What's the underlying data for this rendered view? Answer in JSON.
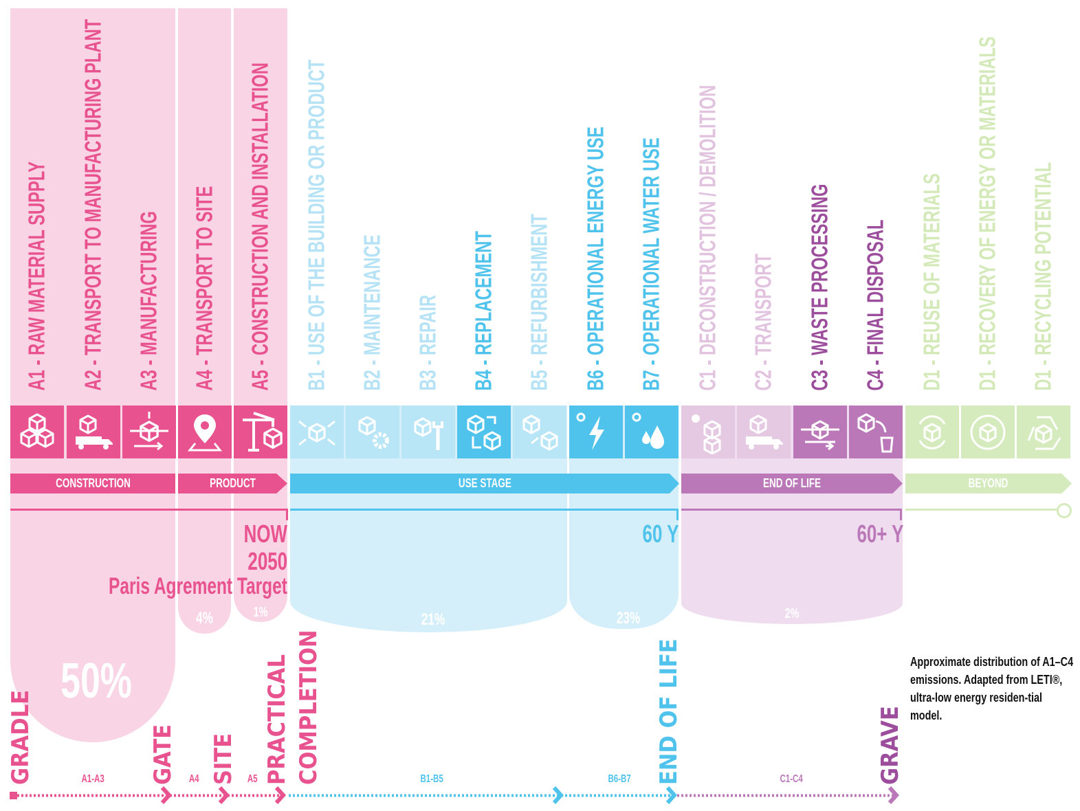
{
  "colors": {
    "pink": "#e8528f",
    "pink_light": "#f9d4e4",
    "blue_light": "#b9e6f7",
    "blue": "#4fc3eb",
    "blue_pale": "#d4effa",
    "lavender": "#e5c8e2",
    "purple": "#bb78b8",
    "purple_pale": "#efdcee",
    "green": "#d6ebbd"
  },
  "modules": [
    {
      "label": "A1 - RAW MATERIAL SUPPLY",
      "text_color": "#e8528f",
      "tile_color": "#e8528f",
      "icon": "cubes-stack-icon"
    },
    {
      "label": "A2 - TRANSPORT TO MANUFACTURING PLANT",
      "text_color": "#e8528f",
      "tile_color": "#e8528f",
      "icon": "truck-cube-icon"
    },
    {
      "label": "A3 - MANUFACTURING",
      "text_color": "#e8528f",
      "tile_color": "#e8528f",
      "icon": "manufacturing-icon"
    },
    {
      "label": "A4 - TRANSPORT TO SITE",
      "text_color": "#e8528f",
      "tile_color": "#e8528f",
      "icon": "location-pin-icon"
    },
    {
      "label": "A5 - CONSTRUCTION AND INSTALLATION",
      "text_color": "#e8528f",
      "tile_color": "#e8528f",
      "icon": "crane-icon"
    },
    {
      "label": "B1 - USE OF THE BUILDING OR PRODUCT",
      "text_color": "#b5e3f5",
      "tile_color": "#b9e6f7",
      "icon": "cube-rays-icon"
    },
    {
      "label": "B2 - MAINTENANCE",
      "text_color": "#b5e3f5",
      "tile_color": "#b9e6f7",
      "icon": "cube-gear-icon"
    },
    {
      "label": "B3 - REPAIR",
      "text_color": "#b5e3f5",
      "tile_color": "#b9e6f7",
      "icon": "cube-wrench-icon"
    },
    {
      "label": "B4 - REPLACEMENT",
      "text_color": "#4fc3eb",
      "tile_color": "#4fc3eb",
      "icon": "cube-swap-icon"
    },
    {
      "label": "B5 - REFURBISHMENT",
      "text_color": "#b5e3f5",
      "tile_color": "#b9e6f7",
      "icon": "cube-refurbish-icon"
    },
    {
      "label": "B6 - OPERATIONAL ENERGY USE",
      "text_color": "#4fc3eb",
      "tile_color": "#4fc3eb",
      "icon": "lightning-icon"
    },
    {
      "label": "B7 - OPERATIONAL WATER USE",
      "text_color": "#4fc3eb",
      "tile_color": "#4fc3eb",
      "icon": "water-drops-icon"
    },
    {
      "label": "C1 - DECONSTRUCTION / DEMOLITION",
      "text_color": "#e2c3df",
      "tile_color": "#e5c8e2",
      "icon": "wrecking-ball-icon"
    },
    {
      "label": "C2 - TRANSPORT",
      "text_color": "#e2c3df",
      "tile_color": "#e5c8e2",
      "icon": "truck-cube-icon"
    },
    {
      "label": "C3 - WASTE PROCESSING",
      "text_color": "#9c4e9c",
      "tile_color": "#bb78b8",
      "icon": "processing-icon"
    },
    {
      "label": "C4 - FINAL DISPOSAL",
      "text_color": "#9c4e9c",
      "tile_color": "#bb78b8",
      "icon": "trash-cube-icon"
    },
    {
      "label": "D1 - REUSE OF MATERIALS",
      "text_color": "#d3e9b7",
      "tile_color": "#d6ebbd",
      "icon": "reuse-icon"
    },
    {
      "label": "D1 - RECOVERY OF ENERGY OR MATERIALS",
      "text_color": "#d3e9b7",
      "tile_color": "#d6ebbd",
      "icon": "recovery-icon"
    },
    {
      "label": "D1 - RECYCLING POTENTIAL",
      "text_color": "#d3e9b7",
      "tile_color": "#d6ebbd",
      "icon": "recycle-icon"
    }
  ],
  "stages": {
    "construction": "CONSTRUCTION",
    "product": "PRODUCT",
    "use": "USE STAGE",
    "end_of_life": "END OF LIFE",
    "beyond": "BEYOND"
  },
  "milestones": {
    "now": "NOW",
    "year_2050": "2050",
    "paris": "Paris Agrement Target",
    "sixty": "60 Y",
    "sixty_plus": "60+ Y"
  },
  "percentages": {
    "a1_a3": "50%",
    "a4": "4%",
    "a5": "1%",
    "b1_b5": "21%",
    "b6_b7": "23%",
    "c": "2%"
  },
  "timeline": {
    "points": {
      "gradle": "GRADLE",
      "gate": "GATE",
      "site": "SITE",
      "practical": "PRACTICAL",
      "completion": "COMPLETION",
      "end_of_life": "END OF LIFE",
      "grave": "GRAVE"
    },
    "ranges": {
      "a1_a3": "A1-A3",
      "a4": "A4",
      "a5": "A5",
      "b1_b5": "B1-B5",
      "b6_b7": "B6-B7",
      "c1_c4": "C1-C4"
    }
  },
  "caption": "Approximate distribution of A1–C4 emissions. Adapted from LETI®, ultra-low energy residen-tial model."
}
